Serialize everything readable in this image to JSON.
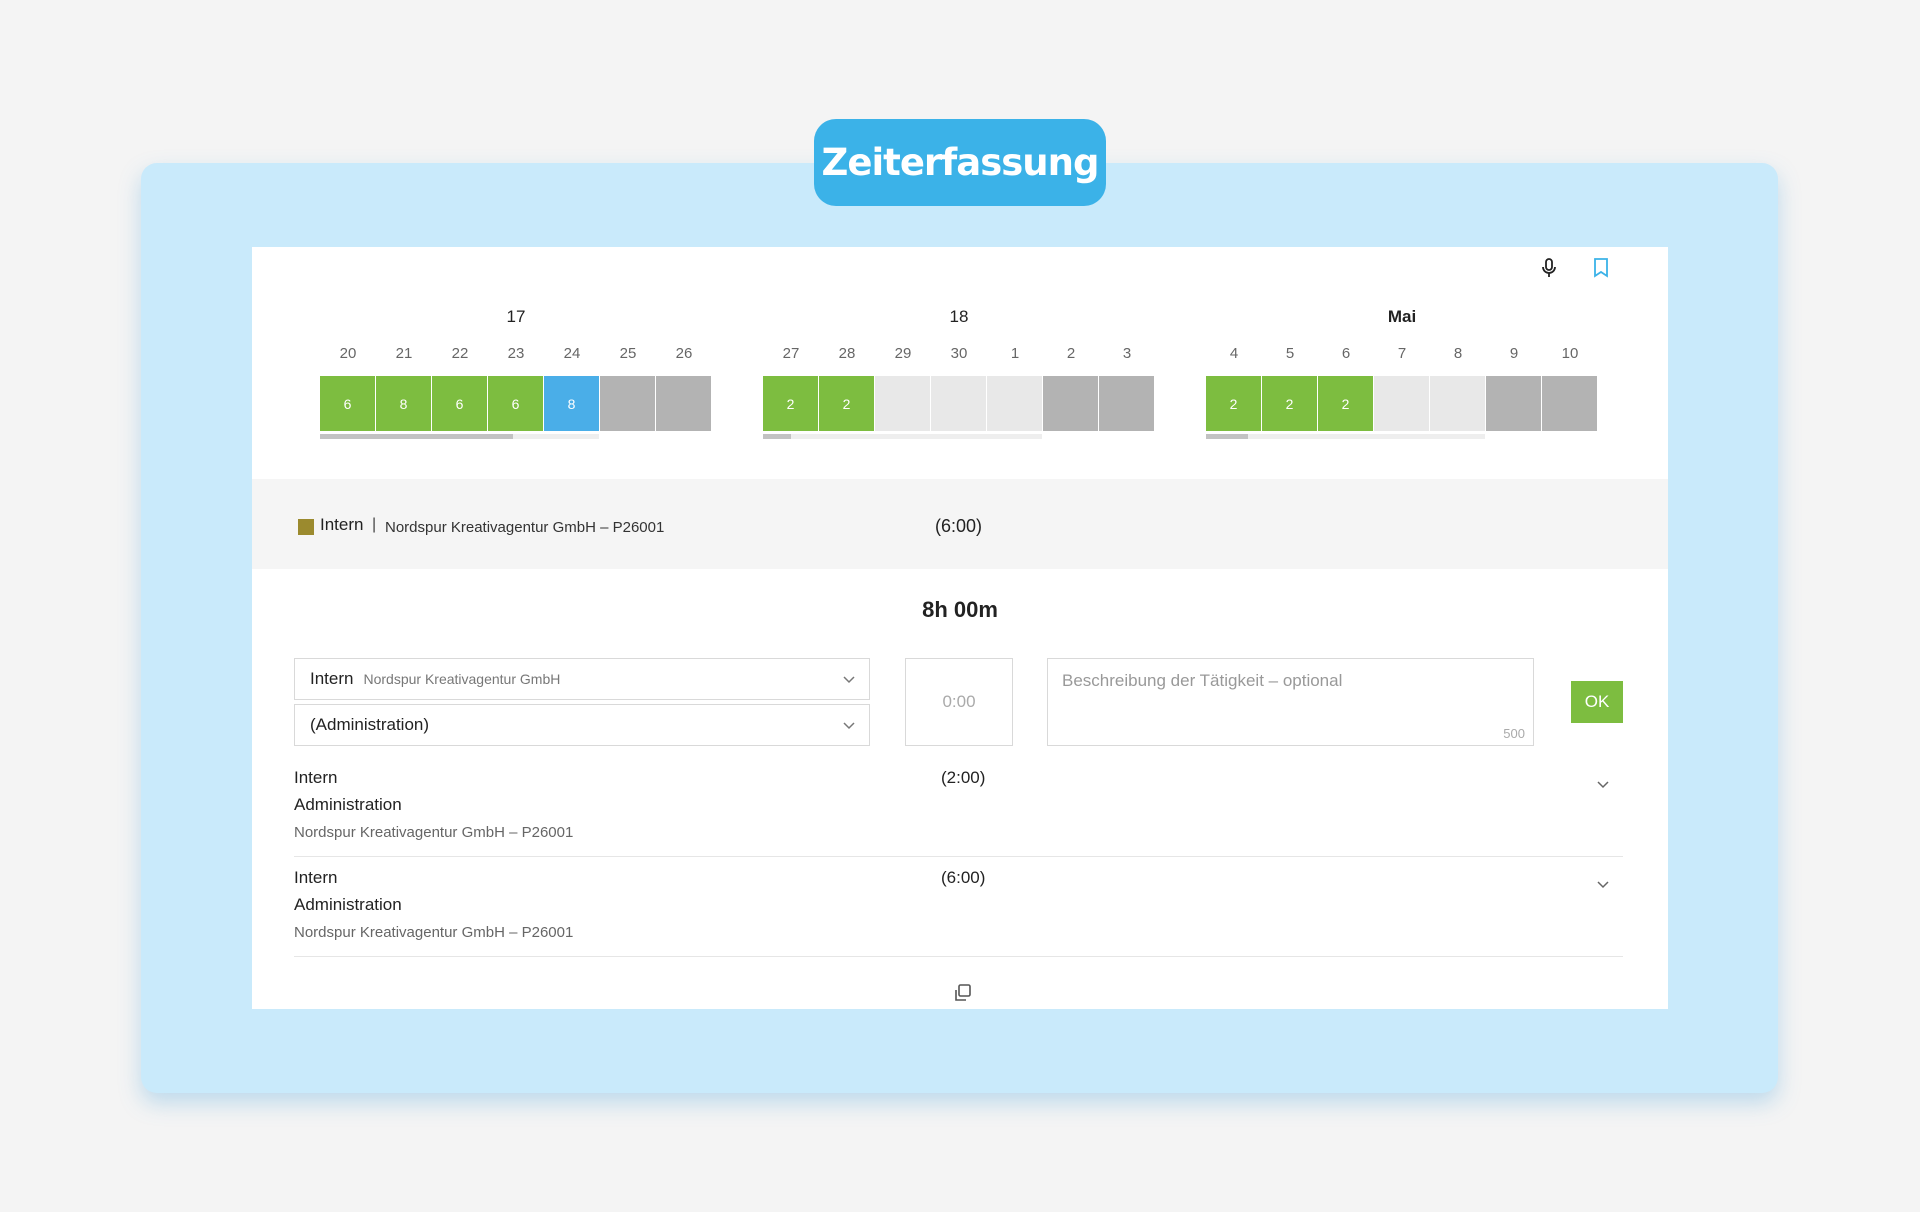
{
  "app": {
    "title": "Zeiterfassung"
  },
  "toolbar": {
    "icons": [
      "microphone-icon",
      "bookmark-icon"
    ]
  },
  "calendar": {
    "weeks": [
      {
        "label": "17",
        "days": [
          "20",
          "21",
          "22",
          "23",
          "24",
          "25",
          "26"
        ],
        "cells": [
          {
            "value": "6",
            "state": "green"
          },
          {
            "value": "8",
            "state": "green"
          },
          {
            "value": "6",
            "state": "green"
          },
          {
            "value": "6",
            "state": "green"
          },
          {
            "value": "8",
            "state": "blue"
          },
          {
            "value": "",
            "state": "dark"
          },
          {
            "value": "",
            "state": "dark"
          }
        ],
        "progress": 0.69
      },
      {
        "label": "18",
        "days": [
          "27",
          "28",
          "29",
          "30",
          "1",
          "2",
          "3"
        ],
        "cells": [
          {
            "value": "2",
            "state": "green"
          },
          {
            "value": "2",
            "state": "green"
          },
          {
            "value": "",
            "state": "empty"
          },
          {
            "value": "",
            "state": "empty"
          },
          {
            "value": "",
            "state": "empty"
          },
          {
            "value": "",
            "state": "dark"
          },
          {
            "value": "",
            "state": "dark"
          }
        ],
        "progress": 0.1
      },
      {
        "label": "Mai",
        "days": [
          "4",
          "5",
          "6",
          "7",
          "8",
          "9",
          "10"
        ],
        "cells": [
          {
            "value": "2",
            "state": "green"
          },
          {
            "value": "2",
            "state": "green"
          },
          {
            "value": "2",
            "state": "green"
          },
          {
            "value": "",
            "state": "empty"
          },
          {
            "value": "",
            "state": "empty"
          },
          {
            "value": "",
            "state": "dark"
          },
          {
            "value": "",
            "state": "dark"
          }
        ],
        "progress": 0.15
      }
    ]
  },
  "selected_entry": {
    "type": "Intern",
    "separator": "|",
    "project": "Nordspur Kreativagentur GmbH – P26001",
    "duration": "(6:00)",
    "color": "#9b8a2e"
  },
  "total": "8h 00m",
  "form": {
    "type_select": {
      "value": "Intern",
      "sub": "Nordspur Kreativagentur GmbH"
    },
    "activity_select": {
      "value": "(Administration)"
    },
    "time": {
      "placeholder": "0:00"
    },
    "description": {
      "placeholder": "Beschreibung der Tätigkeit – optional",
      "counter": "500"
    },
    "ok_label": "OK"
  },
  "entries": [
    {
      "type": "Intern",
      "activity": "Administration",
      "project": "Nordspur Kreativagentur GmbH – P26001",
      "duration": "(2:00)"
    },
    {
      "type": "Intern",
      "activity": "Administration",
      "project": "Nordspur Kreativagentur GmbH – P26001",
      "duration": "(6:00)"
    }
  ],
  "colors": {
    "accent": "#3bb2e8",
    "green": "#7dbd40",
    "blue": "#4aaee8",
    "background": "#c9eafb"
  }
}
